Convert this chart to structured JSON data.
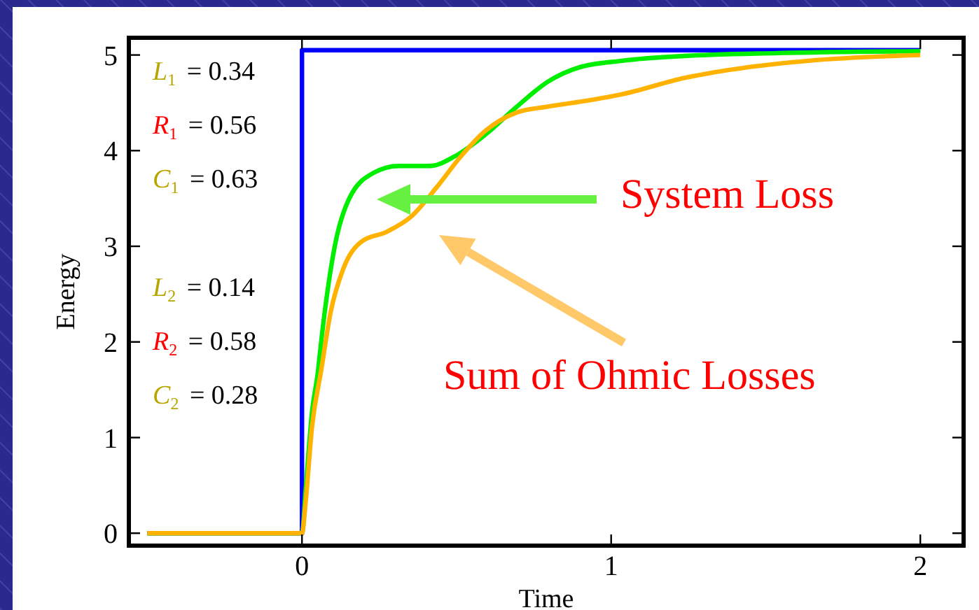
{
  "chart_data": {
    "type": "line",
    "xlabel": "Time",
    "ylabel": "Energy",
    "xlim": [
      -0.56,
      2.14
    ],
    "ylim": [
      -0.13,
      5.18
    ],
    "xticks": [
      0,
      1,
      2
    ],
    "yticks": [
      0,
      1,
      2,
      3,
      4,
      5
    ],
    "grid": false,
    "line_style": "solid",
    "marker": "none",
    "series": [
      {
        "type": "step",
        "color": "#0000ff",
        "x": [
          -0.5,
          0,
          2
        ],
        "values": [
          0,
          5.05,
          5.05
        ]
      },
      {
        "color": "#00ee00",
        "x": [
          -0.5,
          0,
          0.012,
          0.032,
          0.052,
          0.062,
          0.106,
          0.153,
          0.233,
          0.313,
          0.414,
          0.494,
          0.594,
          0.695,
          0.795,
          0.896,
          1.036,
          1.237,
          1.538,
          2.0
        ],
        "values": [
          0,
          0,
          0.46,
          1.25,
          1.7,
          2,
          3,
          3.5,
          3.77,
          3.84,
          3.84,
          3.94,
          4.17,
          4.46,
          4.72,
          4.87,
          4.94,
          4.99,
          5.02,
          5.04
        ]
      },
      {
        "color": "#ffb300",
        "x": [
          -0.5,
          0,
          0.012,
          0.032,
          0.062,
          0.092,
          0.133,
          0.193,
          0.273,
          0.353,
          0.434,
          0.514,
          0.594,
          0.695,
          0.795,
          0.936,
          1.036,
          1.237,
          1.438,
          1.639,
          2.0
        ],
        "values": [
          0,
          0,
          0.33,
          1.1,
          1.7,
          2.3,
          2.76,
          3.05,
          3.15,
          3.31,
          3.61,
          3.94,
          4.21,
          4.4,
          4.46,
          4.53,
          4.59,
          4.76,
          4.87,
          4.94,
          5.0
        ]
      }
    ],
    "annotations": [
      "L$_{1}$ = 0.34",
      "R$_{1}$ = 0.56",
      "C$_{1}$ = 0.63",
      "L$_{2}$ = 0.14",
      "R$_{2}$ = 0.58",
      "C$_{2}$ = 0.28",
      "System Loss",
      "Sum of Ohmic Losses"
    ]
  }
}
